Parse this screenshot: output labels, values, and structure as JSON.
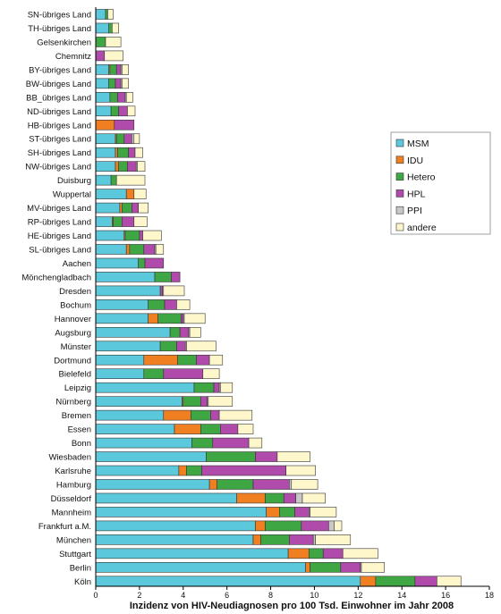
{
  "chart_data": {
    "type": "bar",
    "orientation": "horizontal",
    "stacked": true,
    "xlabel": "Inzidenz von HIV-Neudiagnosen pro 100 Tsd. Einwohner im Jahr 2008",
    "xlim": [
      0,
      18
    ],
    "xticks": [
      0,
      2,
      4,
      6,
      8,
      10,
      12,
      14,
      16,
      18
    ],
    "grid": false,
    "legend_position": "right",
    "categories": [
      "SN-übriges Land",
      "TH-übriges Land",
      "Gelsenkirchen",
      "Chemnitz",
      "BY-übriges Land",
      "BW-übriges Land",
      "BB_übriges Land",
      "ND-übriges Land",
      "HB-übriges Land",
      "ST-übriges Land",
      "SH-übriges Land",
      "NW-übriges Land",
      "Duisburg",
      "Wuppertal",
      "MV-übriges Land",
      "RP-übriges Land",
      "HE-übriges Land",
      "SL-übriges Land",
      "Aachen",
      "Mönchengladbach",
      "Dresden",
      "Bochum",
      "Hannover",
      "Augsburg",
      "Münster",
      "Dortmund",
      "Bielefeld",
      "Leipzig",
      "Nürnberg",
      "Bremen",
      "Essen",
      "Bonn",
      "Wiesbaden",
      "Karlsruhe",
      "Hamburg",
      "Düsseldorf",
      "Mannheim",
      "Frankfurt a.M.",
      "München",
      "Stuttgart",
      "Berlin",
      "Köln"
    ],
    "series": [
      {
        "name": "MSM",
        "color": "#5bc8dc",
        "values": [
          0.45,
          0.6,
          0.0,
          0.0,
          0.6,
          0.6,
          0.65,
          0.7,
          0.0,
          0.9,
          0.9,
          0.9,
          0.7,
          1.4,
          1.1,
          0.75,
          1.3,
          1.4,
          1.95,
          2.7,
          2.95,
          2.4,
          2.4,
          3.4,
          2.95,
          2.2,
          2.2,
          4.5,
          3.95,
          3.1,
          3.6,
          4.4,
          5.05,
          3.8,
          5.2,
          6.45,
          7.8,
          7.3,
          7.2,
          8.8,
          9.6,
          12.1
        ]
      },
      {
        "name": "IDU",
        "color": "#f07f22",
        "values": [
          0.0,
          0.0,
          0.0,
          0.0,
          0.05,
          0.0,
          0.0,
          0.0,
          0.85,
          0.05,
          0.1,
          0.15,
          0.0,
          0.35,
          0.1,
          0.05,
          0.05,
          0.15,
          0.0,
          0.0,
          0.0,
          0.0,
          0.45,
          0.0,
          0.0,
          1.55,
          0.0,
          0.0,
          0.05,
          1.25,
          1.2,
          0.0,
          0.0,
          0.35,
          0.35,
          1.3,
          0.6,
          0.45,
          0.35,
          0.95,
          0.2,
          0.7
        ]
      },
      {
        "name": "Hetero",
        "color": "#3fa644",
        "values": [
          0.1,
          0.15,
          0.45,
          0.0,
          0.3,
          0.3,
          0.35,
          0.35,
          0.0,
          0.35,
          0.5,
          0.4,
          0.25,
          0.0,
          0.45,
          0.4,
          0.65,
          0.65,
          0.3,
          0.75,
          0.0,
          0.75,
          1.05,
          0.45,
          0.75,
          0.85,
          0.9,
          0.9,
          0.8,
          0.9,
          0.9,
          0.95,
          2.25,
          0.7,
          1.65,
          0.85,
          0.7,
          1.65,
          1.3,
          0.65,
          1.4,
          1.8
        ]
      },
      {
        "name": "HPL",
        "color": "#b04aab",
        "values": [
          0.0,
          0.0,
          0.0,
          0.4,
          0.2,
          0.25,
          0.35,
          0.4,
          0.9,
          0.35,
          0.3,
          0.4,
          0.0,
          0.0,
          0.3,
          0.55,
          0.15,
          0.5,
          0.85,
          0.4,
          0.1,
          0.55,
          0.1,
          0.4,
          0.4,
          0.6,
          1.8,
          0.25,
          0.3,
          0.4,
          0.8,
          1.65,
          1.0,
          3.85,
          1.65,
          0.55,
          0.65,
          1.25,
          1.1,
          0.9,
          0.9,
          1.0
        ]
      },
      {
        "name": "PPI",
        "color": "#c8c8c8",
        "values": [
          0.0,
          0.0,
          0.0,
          0.0,
          0.05,
          0.05,
          0.05,
          0.0,
          0.0,
          0.1,
          0.0,
          0.05,
          0.0,
          0.0,
          0.0,
          0.0,
          0.0,
          0.05,
          0.0,
          0.0,
          0.05,
          0.0,
          0.05,
          0.05,
          0.05,
          0.0,
          0.0,
          0.05,
          0.05,
          0.0,
          0.0,
          0.0,
          0.0,
          0.0,
          0.1,
          0.3,
          0.05,
          0.25,
          0.1,
          0.0,
          0.05,
          0.0
        ]
      },
      {
        "name": "andere",
        "color": "#fff7cc",
        "values": [
          0.25,
          0.3,
          0.7,
          0.85,
          0.3,
          0.3,
          0.3,
          0.35,
          0.0,
          0.25,
          0.35,
          0.35,
          1.3,
          0.55,
          0.45,
          0.6,
          0.85,
          0.35,
          0.0,
          0.0,
          0.95,
          0.6,
          0.95,
          0.5,
          1.35,
          0.6,
          0.75,
          0.55,
          1.1,
          1.5,
          0.7,
          0.6,
          1.5,
          1.35,
          1.2,
          1.05,
          1.2,
          0.35,
          1.6,
          1.6,
          1.05,
          1.1
        ]
      }
    ]
  }
}
